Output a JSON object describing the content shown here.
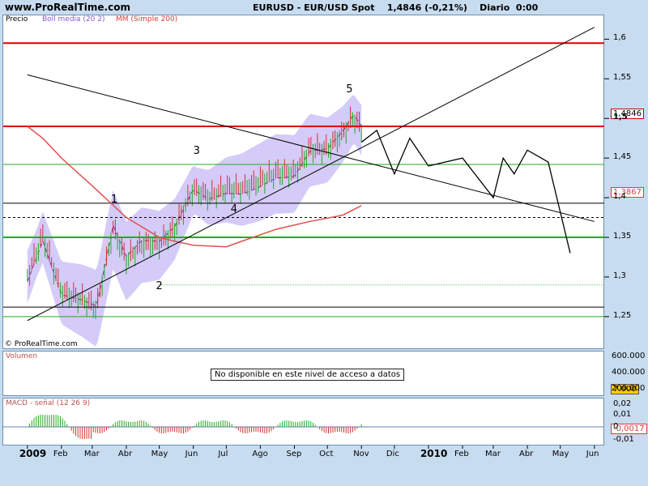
{
  "header": {
    "site": "www.ProRealTime.com",
    "title": "EURUSD - EUR/USD Spot    1,4846 (-0,21%)    Diario  0:00"
  },
  "main_panel": {
    "legend": {
      "price": "Precio",
      "boll": "Boll media (20 2)",
      "mm": "MM (Simple 200)"
    },
    "copyright": "© ProRealTime.com",
    "y_ticks": [
      "1,6",
      "1,55",
      "1,5",
      "1,45",
      "1,4",
      "1,35",
      "1,3",
      "1,25"
    ],
    "last_price_badge": "1,4846",
    "mm_badge": "1,3867",
    "wave_labels": [
      "1",
      "2",
      "3",
      "4",
      "5"
    ]
  },
  "volume_panel": {
    "label": "Volumen",
    "y_ticks": [
      "600.000",
      "400.000",
      "200.000"
    ],
    "badge": "7.000",
    "notice": "No disponible en este nivel de acceso a datos"
  },
  "macd_panel": {
    "label": "MACD - señal (12 26 9)",
    "y_ticks": [
      "0,02",
      "0,01",
      "0",
      "-0,01"
    ],
    "badge": "-0,0017"
  },
  "x_axis": {
    "labels": [
      "2009",
      "Feb",
      "Mar",
      "Abr",
      "May",
      "Jun",
      "Jul",
      "Ago",
      "Sep",
      "Oct",
      "Nov",
      "Dic",
      "2010",
      "Feb",
      "Mar",
      "Abr",
      "May",
      "Jun"
    ]
  },
  "colors": {
    "up": "#22aa22",
    "down": "#cc3333",
    "band": "#c9bef7",
    "mm": "#e05050",
    "resistance": "#dd0000",
    "support": "#22aa22",
    "trend": "#000000"
  },
  "chart_data": {
    "type": "line",
    "title": "EURUSD - EUR/USD Spot",
    "ylim": [
      1.21,
      1.63
    ],
    "ylabel": "",
    "horizontal_levels": {
      "red": [
        1.595,
        1.49
      ],
      "green": [
        1.442,
        1.35,
        1.25
      ],
      "black": [
        1.393,
        1.262
      ],
      "dashed": [
        1.375
      ],
      "dotted_green": [
        1.29
      ]
    },
    "price_path": [
      [
        "2009-01-01",
        1.3
      ],
      [
        "2009-01-15",
        1.35
      ],
      [
        "2009-02-01",
        1.28
      ],
      [
        "2009-02-20",
        1.27
      ],
      [
        "2009-03-05",
        1.26
      ],
      [
        "2009-03-20",
        1.36
      ],
      [
        "2009-04-01",
        1.32
      ],
      [
        "2009-04-15",
        1.34
      ],
      [
        "2009-05-01",
        1.34
      ],
      [
        "2009-05-15",
        1.36
      ],
      [
        "2009-06-01",
        1.41
      ],
      [
        "2009-06-15",
        1.4
      ],
      [
        "2009-07-01",
        1.41
      ],
      [
        "2009-07-15",
        1.41
      ],
      [
        "2009-08-01",
        1.42
      ],
      [
        "2009-08-15",
        1.43
      ],
      [
        "2009-09-01",
        1.43
      ],
      [
        "2009-09-15",
        1.46
      ],
      [
        "2009-10-01",
        1.46
      ],
      [
        "2009-10-15",
        1.48
      ],
      [
        "2009-10-25",
        1.5
      ],
      [
        "2009-11-01",
        1.485
      ]
    ],
    "mm200_path": [
      [
        "2009-01-01",
        1.49
      ],
      [
        "2009-01-15",
        1.475
      ],
      [
        "2009-02-01",
        1.45
      ],
      [
        "2009-03-01",
        1.415
      ],
      [
        "2009-04-01",
        1.375
      ],
      [
        "2009-05-01",
        1.35
      ],
      [
        "2009-05-15",
        1.345
      ],
      [
        "2009-06-01",
        1.34
      ],
      [
        "2009-07-01",
        1.338
      ],
      [
        "2009-07-15",
        1.345
      ],
      [
        "2009-08-15",
        1.36
      ],
      [
        "2009-09-15",
        1.37
      ],
      [
        "2009-10-15",
        1.378
      ],
      [
        "2009-11-01",
        1.39
      ]
    ],
    "projection_path": [
      [
        "2009-11-01",
        1.47
      ],
      [
        "2009-11-15",
        1.485
      ],
      [
        "2009-12-01",
        1.43
      ],
      [
        "2009-12-15",
        1.475
      ],
      [
        "2010-01-01",
        1.44
      ],
      [
        "2010-02-01",
        1.45
      ],
      [
        "2010-03-01",
        1.4
      ],
      [
        "2010-03-10",
        1.45
      ],
      [
        "2010-03-20",
        1.43
      ],
      [
        "2010-04-01",
        1.46
      ],
      [
        "2010-04-20",
        1.445
      ],
      [
        "2010-05-10",
        1.33
      ]
    ],
    "trendlines": [
      {
        "from": [
          "2009-01-01",
          1.245
        ],
        "to": [
          "2010-06-01",
          1.615
        ]
      },
      {
        "from": [
          "2009-01-01",
          1.555
        ],
        "to": [
          "2010-06-01",
          1.37
        ]
      }
    ]
  }
}
